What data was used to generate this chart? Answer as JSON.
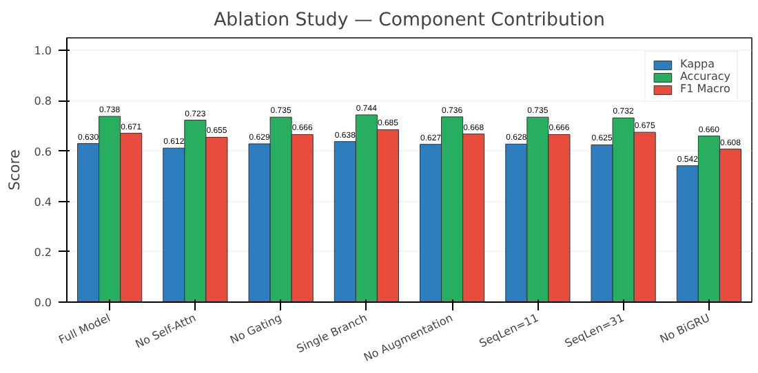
{
  "chart_data": {
    "type": "bar",
    "title": "Ablation Study — Component Contribution",
    "ylabel": "Score",
    "categories": [
      "Full Model",
      "No Self-Attn",
      "No Gating",
      "Single Branch",
      "No Augmentation",
      "SeqLen=11",
      "SeqLen=31",
      "No BiGRU"
    ],
    "series": [
      {
        "name": "Kappa",
        "color": "#2e7ebf",
        "values": [
          0.63,
          0.612,
          0.629,
          0.638,
          0.627,
          0.628,
          0.625,
          0.542
        ],
        "value_labels": [
          "0.630",
          "0.612",
          "0.629",
          "0.638",
          "0.627",
          "0.628",
          "0.625",
          "0.542"
        ]
      },
      {
        "name": "Accuracy",
        "color": "#27ae60",
        "values": [
          0.738,
          0.723,
          0.735,
          0.744,
          0.736,
          0.735,
          0.732,
          0.66
        ],
        "value_labels": [
          "0.738",
          "0.723",
          "0.735",
          "0.744",
          "0.736",
          "0.735",
          "0.732",
          "0.660"
        ]
      },
      {
        "name": "F1 Macro",
        "color": "#e74c3c",
        "values": [
          0.671,
          0.655,
          0.666,
          0.685,
          0.668,
          0.666,
          0.675,
          0.608
        ],
        "value_labels": [
          "0.671",
          "0.655",
          "0.666",
          "0.685",
          "0.668",
          "0.666",
          "0.675",
          "0.608"
        ]
      }
    ],
    "ylim": [
      0,
      1.05
    ],
    "yticks": [
      {
        "value": 0,
        "label": "0.0"
      },
      0.2,
      0.4,
      0.6,
      0.8,
      {
        "value": 1,
        "label": "1.0"
      }
    ],
    "grid": "y",
    "legend": "top right"
  }
}
